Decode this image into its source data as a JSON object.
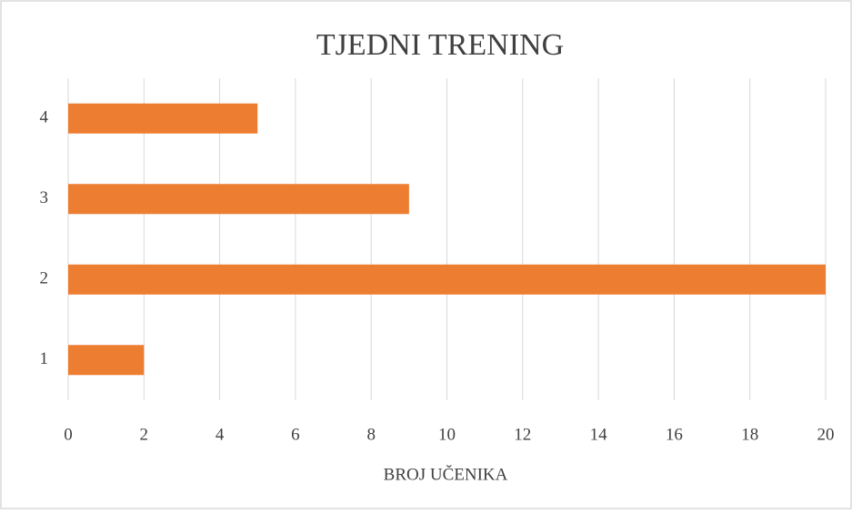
{
  "chart_data": {
    "type": "bar",
    "orientation": "horizontal",
    "title": "TJEDNI TRENING",
    "x_label": "BROJ UČENIKA",
    "categories": [
      "1",
      "2",
      "3",
      "4"
    ],
    "values": [
      2,
      20,
      9,
      5
    ],
    "color": "#ed7d31",
    "xlim": [
      0,
      20
    ],
    "xticks": [
      0,
      2,
      4,
      6,
      8,
      10,
      12,
      14,
      16,
      18,
      20
    ],
    "grid": true
  }
}
